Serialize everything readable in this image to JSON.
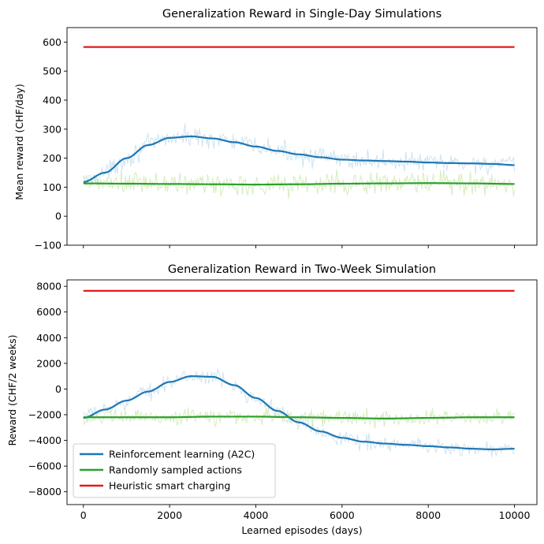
{
  "colors": {
    "rl": "#1f77b4",
    "rl_raw": "#a6cee3",
    "random": "#2ca02c",
    "random_raw": "#b2df8a",
    "heuristic": "#e31a1c"
  },
  "chart_data": [
    {
      "type": "line",
      "title": "Generalization Reward in Single-Day Simulations",
      "xlabel": "",
      "ylabel": "Mean reward (CHF/day)",
      "xlim": [
        -380,
        10520
      ],
      "ylim": [
        -100,
        650
      ],
      "xticks": [
        0,
        2000,
        4000,
        6000,
        8000,
        10000
      ],
      "xtick_labels": [
        "",
        "",
        "",
        "",
        "",
        ""
      ],
      "yticks": [
        -100,
        0,
        100,
        200,
        300,
        400,
        500,
        600
      ],
      "ytick_labels": [
        "−100",
        "0",
        "100",
        "200",
        "300",
        "400",
        "500",
        "600"
      ],
      "grid": false,
      "series": [
        {
          "name": "Reinforcement learning (A2C)",
          "role": "smoothed",
          "color_key": "rl",
          "x": [
            0,
            500,
            1000,
            1500,
            2000,
            2500,
            3000,
            3500,
            4000,
            4500,
            5000,
            5500,
            6000,
            6500,
            7000,
            7500,
            8000,
            8500,
            9000,
            9500,
            10000
          ],
          "y": [
            118,
            150,
            200,
            245,
            270,
            275,
            268,
            255,
            240,
            225,
            213,
            203,
            195,
            192,
            190,
            188,
            185,
            183,
            182,
            180,
            176
          ],
          "noise": 25
        },
        {
          "name": "Randomly sampled actions",
          "role": "smoothed",
          "color_key": "random",
          "x": [
            0,
            1000,
            2000,
            3000,
            4000,
            5000,
            6000,
            7000,
            8000,
            9000,
            10000
          ],
          "y": [
            113,
            112,
            111,
            110,
            109,
            110,
            112,
            113,
            114,
            113,
            111
          ],
          "noise": 32
        },
        {
          "name": "Heuristic smart charging",
          "role": "constant",
          "color_key": "heuristic",
          "x": [
            0,
            10000
          ],
          "y": [
            583,
            583
          ],
          "noise": 0
        }
      ],
      "legend": null
    },
    {
      "type": "line",
      "title": "Generalization Reward in Two-Week Simulation",
      "xlabel": "Learned episodes (days)",
      "ylabel": "Reward (CHF/2 weeks)",
      "xlim": [
        -380,
        10520
      ],
      "ylim": [
        -9000,
        8500
      ],
      "xticks": [
        0,
        2000,
        4000,
        6000,
        8000,
        10000
      ],
      "xtick_labels": [
        "0",
        "2000",
        "4000",
        "6000",
        "8000",
        "10000"
      ],
      "yticks": [
        -8000,
        -6000,
        -4000,
        -2000,
        0,
        2000,
        4000,
        6000,
        8000
      ],
      "ytick_labels": [
        "−8000",
        "−6000",
        "−4000",
        "−2000",
        "0",
        "2000",
        "4000",
        "6000",
        "8000"
      ],
      "grid": false,
      "series": [
        {
          "name": "Reinforcement learning (A2C)",
          "role": "smoothed",
          "color_key": "rl",
          "x": [
            0,
            500,
            1000,
            1500,
            2000,
            2500,
            3000,
            3500,
            4000,
            4500,
            5000,
            5500,
            6000,
            6500,
            7000,
            7500,
            8000,
            8500,
            9000,
            9500,
            10000
          ],
          "y": [
            -2250,
            -1600,
            -900,
            -200,
            550,
            1000,
            950,
            300,
            -700,
            -1700,
            -2600,
            -3300,
            -3800,
            -4100,
            -4250,
            -4350,
            -4450,
            -4550,
            -4650,
            -4700,
            -4650
          ],
          "noise": 450
        },
        {
          "name": "Randomly sampled actions",
          "role": "smoothed",
          "color_key": "random",
          "x": [
            0,
            1000,
            2000,
            3000,
            4000,
            5000,
            6000,
            7000,
            8000,
            9000,
            10000
          ],
          "y": [
            -2200,
            -2200,
            -2200,
            -2150,
            -2150,
            -2200,
            -2250,
            -2300,
            -2250,
            -2200,
            -2200
          ],
          "noise": 480
        },
        {
          "name": "Heuristic smart charging",
          "role": "constant",
          "color_key": "heuristic",
          "x": [
            0,
            10000
          ],
          "y": [
            7650,
            7650
          ],
          "noise": 0
        }
      ],
      "legend": {
        "placement": "lower-left",
        "entries": [
          {
            "label": "Reinforcement learning (A2C)",
            "color_key": "rl"
          },
          {
            "label": "Randomly sampled actions",
            "color_key": "random"
          },
          {
            "label": "Heuristic smart charging",
            "color_key": "heuristic"
          }
        ]
      }
    }
  ]
}
